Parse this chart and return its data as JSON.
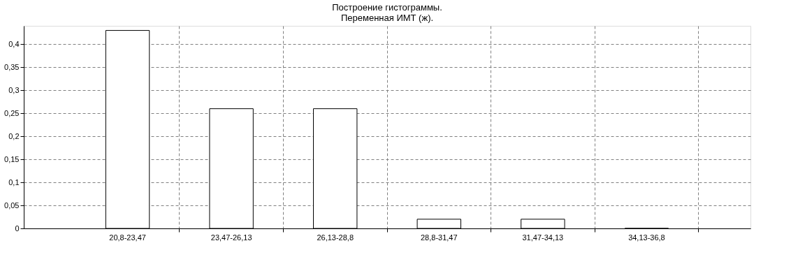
{
  "chart_data": {
    "type": "bar",
    "title": "Построение гистограммы.",
    "subtitle": "Переменная ИМТ (ж).",
    "categories": [
      "20,8-23,47",
      "23,47-26,13",
      "26,13-28,8",
      "28,8-31,47",
      "31,47-34,13",
      "34,13-36,8"
    ],
    "values": [
      0.43,
      0.26,
      0.26,
      0.02,
      0.02,
      0
    ],
    "color": "#ffffff",
    "ylim": [
      0,
      0.44
    ],
    "yticks": [
      0,
      {
        "value": 0.05,
        "label": "0,05"
      },
      {
        "value": 0.1,
        "label": "0,1"
      },
      {
        "value": 0.15,
        "label": "0,15"
      },
      {
        "value": 0.2,
        "label": "0,2"
      },
      {
        "value": 0.25,
        "label": "0,25"
      },
      {
        "value": 0.3,
        "label": "0,3"
      },
      {
        "value": 0.35,
        "label": "0,35"
      },
      {
        "value": 0.4,
        "label": "0,4"
      }
    ],
    "grid": true
  }
}
